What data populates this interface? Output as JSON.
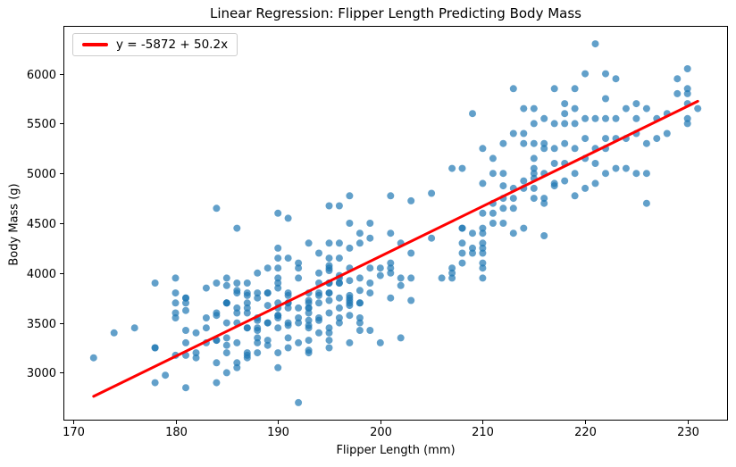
{
  "figure": {
    "background": "#ffffff",
    "accent_blue": "#1f77b4",
    "accent_red": "#ff0000",
    "spine_color": "#000000"
  },
  "chart_data": {
    "type": "scatter",
    "title": "Linear Regression: Flipper Length Predicting Body Mass",
    "xlabel": "Flipper Length (mm)",
    "ylabel": "Body Mass (g)",
    "xlim": [
      169.05,
      233.95
    ],
    "ylim": [
      2520,
      6480
    ],
    "x_ticks": [
      170,
      180,
      190,
      200,
      210,
      220,
      230
    ],
    "y_ticks": [
      3000,
      3500,
      4000,
      4500,
      5000,
      5500,
      6000
    ],
    "grid": false,
    "legend_position": "upper-left",
    "regression": {
      "label": "y = -5872 + 50.2x",
      "intercept": -5872,
      "slope": 50.2,
      "x_start": 172,
      "x_end": 231,
      "color": "#ff0000",
      "line_width": 3
    },
    "marker": {
      "color": "#1f77b4",
      "opacity": 0.7,
      "radius": 4
    },
    "points": [
      [
        181,
        3750
      ],
      [
        186,
        3800
      ],
      [
        195,
        3250
      ],
      [
        193,
        3450
      ],
      [
        190,
        3650
      ],
      [
        181,
        3625
      ],
      [
        195,
        4675
      ],
      [
        193,
        3475
      ],
      [
        190,
        4250
      ],
      [
        186,
        3300
      ],
      [
        180,
        3700
      ],
      [
        182,
        3200
      ],
      [
        191,
        3800
      ],
      [
        198,
        4400
      ],
      [
        185,
        3700
      ],
      [
        195,
        3450
      ],
      [
        197,
        4500
      ],
      [
        184,
        3325
      ],
      [
        194,
        4200
      ],
      [
        174,
        3400
      ],
      [
        180,
        3600
      ],
      [
        189,
        3800
      ],
      [
        185,
        3950
      ],
      [
        180,
        3800
      ],
      [
        187,
        3800
      ],
      [
        183,
        3550
      ],
      [
        187,
        3200
      ],
      [
        172,
        3150
      ],
      [
        180,
        3950
      ],
      [
        178,
        3250
      ],
      [
        178,
        3900
      ],
      [
        188,
        3300
      ],
      [
        184,
        3900
      ],
      [
        195,
        3325
      ],
      [
        196,
        4150
      ],
      [
        176,
        3450
      ],
      [
        181,
        2850
      ],
      [
        190,
        3950
      ],
      [
        180,
        3550
      ],
      [
        181,
        3300
      ],
      [
        184,
        4650
      ],
      [
        182,
        3150
      ],
      [
        195,
        3900
      ],
      [
        186,
        3100
      ],
      [
        196,
        4675
      ],
      [
        185,
        3000
      ],
      [
        190,
        4600
      ],
      [
        178,
        2900
      ],
      [
        179,
        2975
      ],
      [
        190,
        4150
      ],
      [
        191,
        3500
      ],
      [
        188,
        3425
      ],
      [
        187,
        3175
      ],
      [
        186,
        3900
      ],
      [
        193,
        3650
      ],
      [
        181,
        3175
      ],
      [
        194,
        3900
      ],
      [
        185,
        3350
      ],
      [
        195,
        3800
      ],
      [
        185,
        3500
      ],
      [
        192,
        3950
      ],
      [
        184,
        3600
      ],
      [
        192,
        3550
      ],
      [
        195,
        4300
      ],
      [
        188,
        3450
      ],
      [
        190,
        4050
      ],
      [
        197,
        4775
      ],
      [
        191,
        3700
      ],
      [
        196,
        3550
      ],
      [
        199,
        4500
      ],
      [
        189,
        3675
      ],
      [
        194,
        3400
      ],
      [
        189,
        3800
      ],
      [
        197,
        3775
      ],
      [
        185,
        3700
      ],
      [
        186,
        4450
      ],
      [
        184,
        3325
      ],
      [
        190,
        3200
      ],
      [
        188,
        3800
      ],
      [
        194,
        4000
      ],
      [
        196,
        3500
      ],
      [
        183,
        3450
      ],
      [
        191,
        3250
      ],
      [
        187,
        3700
      ],
      [
        193,
        3525
      ],
      [
        186,
        3650
      ],
      [
        188,
        3200
      ],
      [
        190,
        3900
      ],
      [
        200,
        3975
      ],
      [
        192,
        4050
      ],
      [
        189,
        3275
      ],
      [
        186,
        3050
      ],
      [
        195,
        3725
      ],
      [
        198,
        3825
      ],
      [
        191,
        3775
      ],
      [
        184,
        3575
      ],
      [
        192,
        4100
      ],
      [
        196,
        3975
      ],
      [
        180,
        3175
      ],
      [
        193,
        3725
      ],
      [
        188,
        3350
      ],
      [
        189,
        3500
      ],
      [
        185,
        3875
      ],
      [
        201,
        4000
      ],
      [
        190,
        3575
      ],
      [
        195,
        4075
      ],
      [
        187,
        3450
      ],
      [
        182,
        3400
      ],
      [
        197,
        4250
      ],
      [
        191,
        4150
      ],
      [
        186,
        3600
      ],
      [
        194,
        3525
      ],
      [
        199,
        4350
      ],
      [
        190,
        3450
      ],
      [
        183,
        3850
      ],
      [
        197,
        3675
      ],
      [
        192,
        3300
      ],
      [
        188,
        3750
      ],
      [
        195,
        4025
      ],
      [
        185,
        3275
      ],
      [
        202,
        3875
      ],
      [
        196,
        4300
      ],
      [
        190,
        3050
      ],
      [
        187,
        3150
      ],
      [
        194,
        3800
      ],
      [
        189,
        4050
      ],
      [
        191,
        3350
      ],
      [
        193,
        4300
      ],
      [
        184,
        2900
      ],
      [
        198,
        3700
      ],
      [
        186,
        3825
      ],
      [
        192,
        3650
      ],
      [
        196,
        3900
      ],
      [
        190,
        3700
      ],
      [
        184,
        3100
      ],
      [
        195,
        3600
      ],
      [
        188,
        4000
      ],
      [
        181,
        3425
      ],
      [
        189,
        3325
      ],
      [
        197,
        3925
      ],
      [
        193,
        3225
      ],
      [
        187,
        3900
      ],
      [
        199,
        4050
      ],
      [
        190,
        3850
      ],
      [
        186,
        3500
      ],
      [
        191,
        4550
      ],
      [
        183,
        3300
      ],
      [
        194,
        3700
      ],
      [
        185,
        3200
      ],
      [
        196,
        3750
      ],
      [
        188,
        3550
      ],
      [
        192,
        3500
      ],
      [
        196,
        3900
      ],
      [
        193,
        3650
      ],
      [
        188,
        3525
      ],
      [
        197,
        3725
      ],
      [
        198,
        3950
      ],
      [
        178,
        3250
      ],
      [
        197,
        3750
      ],
      [
        195,
        4150
      ],
      [
        198,
        3700
      ],
      [
        193,
        3800
      ],
      [
        194,
        3775
      ],
      [
        185,
        3700
      ],
      [
        201,
        4050
      ],
      [
        190,
        3575
      ],
      [
        201,
        4100
      ],
      [
        197,
        3300
      ],
      [
        181,
        3700
      ],
      [
        190,
        3550
      ],
      [
        195,
        3800
      ],
      [
        181,
        3750
      ],
      [
        191,
        3700
      ],
      [
        187,
        3775
      ],
      [
        193,
        3700
      ],
      [
        195,
        4050
      ],
      [
        197,
        3575
      ],
      [
        200,
        4050
      ],
      [
        200,
        3300
      ],
      [
        191,
        3650
      ],
      [
        207,
        4050
      ],
      [
        187,
        3450
      ],
      [
        201,
        4400
      ],
      [
        187,
        3600
      ],
      [
        203,
        4200
      ],
      [
        195,
        3400
      ],
      [
        197,
        3700
      ],
      [
        198,
        4300
      ],
      [
        193,
        3200
      ],
      [
        210,
        4200
      ],
      [
        198,
        3550
      ],
      [
        199,
        3800
      ],
      [
        196,
        3950
      ],
      [
        198,
        3500
      ],
      [
        199,
        3900
      ],
      [
        201,
        4775
      ],
      [
        199,
        3425
      ],
      [
        193,
        3325
      ],
      [
        203,
        3950
      ],
      [
        187,
        3650
      ],
      [
        197,
        4050
      ],
      [
        191,
        3475
      ],
      [
        203,
        3725
      ],
      [
        202,
        3350
      ],
      [
        194,
        3550
      ],
      [
        201,
        3750
      ],
      [
        189,
        3500
      ],
      [
        195,
        3900
      ],
      [
        207,
        4000
      ],
      [
        202,
        4300
      ],
      [
        193,
        3600
      ],
      [
        210,
        4100
      ],
      [
        198,
        3425
      ],
      [
        205,
        4800
      ],
      [
        212,
        4500
      ],
      [
        202,
        3950
      ],
      [
        196,
        3650
      ],
      [
        192,
        2700
      ],
      [
        208,
        4450
      ],
      [
        211,
        4500
      ],
      [
        230,
        5700
      ],
      [
        210,
        4450
      ],
      [
        218,
        5700
      ],
      [
        215,
        4750
      ],
      [
        210,
        4400
      ],
      [
        211,
        4600
      ],
      [
        219,
        5250
      ],
      [
        209,
        4200
      ],
      [
        215,
        5150
      ],
      [
        214,
        5400
      ],
      [
        216,
        5250
      ],
      [
        213,
        4750
      ],
      [
        210,
        4250
      ],
      [
        217,
        5850
      ],
      [
        210,
        4600
      ],
      [
        221,
        6300
      ],
      [
        209,
        4250
      ],
      [
        222,
        5350
      ],
      [
        218,
        5600
      ],
      [
        215,
        5000
      ],
      [
        213,
        4400
      ],
      [
        215,
        5050
      ],
      [
        215,
        5300
      ],
      [
        215,
        4950
      ],
      [
        216,
        4750
      ],
      [
        215,
        4850
      ],
      [
        210,
        4900
      ],
      [
        220,
        4850
      ],
      [
        222,
        5250
      ],
      [
        209,
        4400
      ],
      [
        207,
        3950
      ],
      [
        212,
        4875
      ],
      [
        214,
        4925
      ],
      [
        211,
        4700
      ],
      [
        213,
        4850
      ],
      [
        217,
        5100
      ],
      [
        216,
        5000
      ],
      [
        218,
        5300
      ],
      [
        219,
        5000
      ],
      [
        208,
        4300
      ],
      [
        208,
        4450
      ],
      [
        208,
        5050
      ],
      [
        209,
        5600
      ],
      [
        210,
        4300
      ],
      [
        210,
        5250
      ],
      [
        212,
        4650
      ],
      [
        212,
        5300
      ],
      [
        213,
        4650
      ],
      [
        213,
        5400
      ],
      [
        214,
        4850
      ],
      [
        214,
        5300
      ],
      [
        215,
        5500
      ],
      [
        215,
        5650
      ],
      [
        216,
        4700
      ],
      [
        216,
        5550
      ],
      [
        216,
        4375
      ],
      [
        217,
        4875
      ],
      [
        217,
        4900
      ],
      [
        217,
        5500
      ],
      [
        218,
        4925
      ],
      [
        218,
        5100
      ],
      [
        219,
        4775
      ],
      [
        219,
        5500
      ],
      [
        220,
        5150
      ],
      [
        220,
        5350
      ],
      [
        220,
        6000
      ],
      [
        221,
        4900
      ],
      [
        221,
        5100
      ],
      [
        221,
        5550
      ],
      [
        222,
        5000
      ],
      [
        222,
        5550
      ],
      [
        222,
        6000
      ],
      [
        223,
        5050
      ],
      [
        223,
        5350
      ],
      [
        223,
        5950
      ],
      [
        224,
        5350
      ],
      [
        224,
        5650
      ],
      [
        225,
        5000
      ],
      [
        225,
        5400
      ],
      [
        225,
        5700
      ],
      [
        226,
        5300
      ],
      [
        226,
        5650
      ],
      [
        227,
        5550
      ],
      [
        228,
        5400
      ],
      [
        228,
        5600
      ],
      [
        229,
        5800
      ],
      [
        229,
        5950
      ],
      [
        230,
        5500
      ],
      [
        230,
        5550
      ],
      [
        230,
        5800
      ],
      [
        230,
        5850
      ],
      [
        230,
        6050
      ],
      [
        231,
        5650
      ],
      [
        213,
        5850
      ],
      [
        208,
        4200
      ],
      [
        210,
        3950
      ],
      [
        210,
        4050
      ],
      [
        211,
        5000
      ],
      [
        212,
        5000
      ],
      [
        206,
        3950
      ],
      [
        207,
        5050
      ],
      [
        205,
        4350
      ],
      [
        203,
        4725
      ],
      [
        208,
        4100
      ],
      [
        211,
        5150
      ],
      [
        212,
        4750
      ],
      [
        214,
        5650
      ],
      [
        216,
        5300
      ],
      [
        217,
        5250
      ],
      [
        218,
        5500
      ],
      [
        219,
        5650
      ],
      [
        220,
        5550
      ],
      [
        221,
        5250
      ],
      [
        222,
        5750
      ],
      [
        223,
        5550
      ],
      [
        224,
        5050
      ],
      [
        225,
        5550
      ],
      [
        226,
        5000
      ],
      [
        227,
        5350
      ],
      [
        226,
        4700
      ],
      [
        214,
        4450
      ],
      [
        219,
        5850
      ]
    ]
  }
}
